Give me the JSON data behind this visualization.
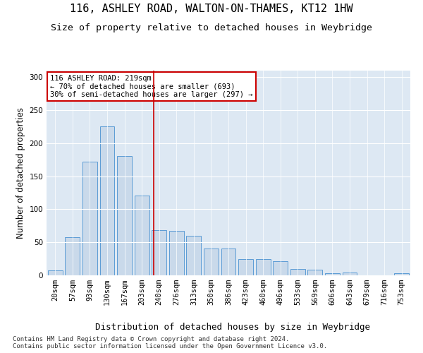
{
  "title1": "116, ASHLEY ROAD, WALTON-ON-THAMES, KT12 1HW",
  "title2": "Size of property relative to detached houses in Weybridge",
  "xlabel": "Distribution of detached houses by size in Weybridge",
  "ylabel": "Number of detached properties",
  "categories": [
    "20sqm",
    "57sqm",
    "93sqm",
    "130sqm",
    "167sqm",
    "203sqm",
    "240sqm",
    "276sqm",
    "313sqm",
    "350sqm",
    "386sqm",
    "423sqm",
    "460sqm",
    "496sqm",
    "533sqm",
    "569sqm",
    "606sqm",
    "643sqm",
    "679sqm",
    "716sqm",
    "753sqm"
  ],
  "values": [
    7,
    58,
    172,
    226,
    181,
    121,
    68,
    67,
    60,
    41,
    41,
    25,
    25,
    21,
    10,
    9,
    3,
    4,
    0,
    0,
    3
  ],
  "bar_color": "#c9d9ea",
  "bar_edge_color": "#5b9bd5",
  "vline_x": 5.67,
  "vline_color": "#cc0000",
  "annotation_text": "116 ASHLEY ROAD: 219sqm\n← 70% of detached houses are smaller (693)\n30% of semi-detached houses are larger (297) →",
  "annotation_box_color": "#ffffff",
  "annotation_box_edge": "#cc0000",
  "ylim": [
    0,
    310
  ],
  "yticks": [
    0,
    50,
    100,
    150,
    200,
    250,
    300
  ],
  "footnote": "Contains HM Land Registry data © Crown copyright and database right 2024.\nContains public sector information licensed under the Open Government Licence v3.0.",
  "bg_color": "#dde8f3",
  "fig_bg_color": "#ffffff",
  "title1_fontsize": 11,
  "title2_fontsize": 9.5,
  "xlabel_fontsize": 9,
  "ylabel_fontsize": 8.5,
  "tick_fontsize": 7.5,
  "footnote_fontsize": 6.5,
  "annot_fontsize": 7.5
}
